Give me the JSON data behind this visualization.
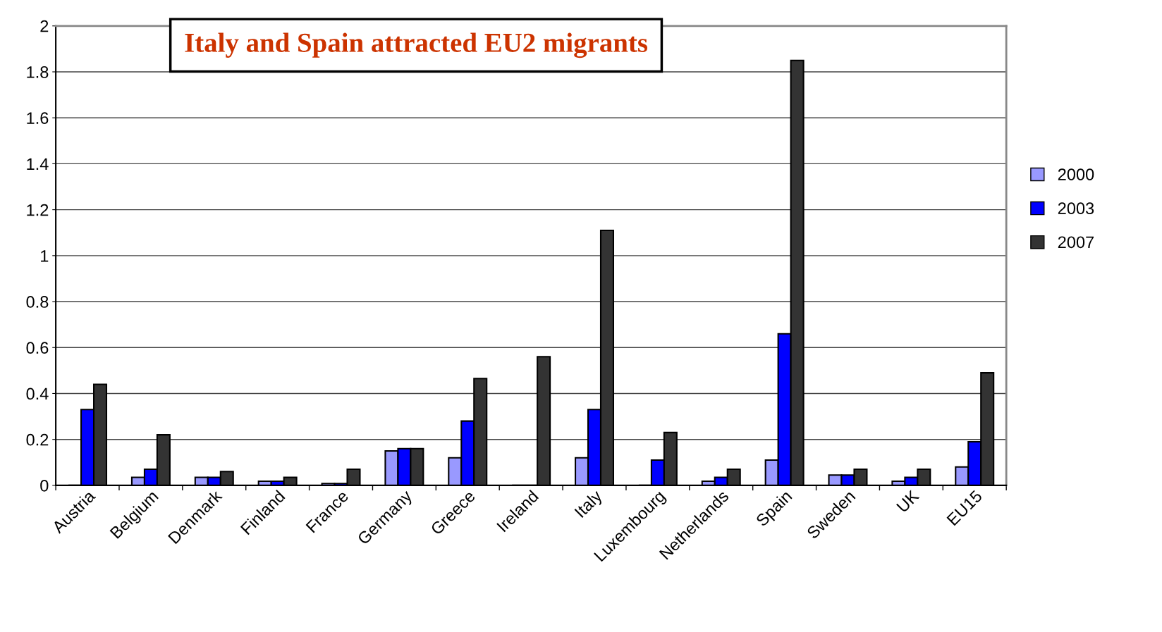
{
  "chart_data": {
    "type": "bar",
    "annotations": [
      "Italy and Spain attracted EU2 migrants"
    ],
    "categories": [
      "Austria",
      "Belgium",
      "Denmark",
      "Finland",
      "France",
      "Germany",
      "Greece",
      "Ireland",
      "Italy",
      "Luxembourg",
      "Netherlands",
      "Spain",
      "Sweden",
      "UK",
      "EU15"
    ],
    "series": [
      {
        "name": "2000",
        "color": "#9999ff",
        "values": [
          0,
          0.035,
          0.035,
          0.018,
          0.008,
          0.15,
          0.12,
          0,
          0.12,
          0,
          0.018,
          0.11,
          0.045,
          0.018,
          0.08
        ]
      },
      {
        "name": "2003",
        "color": "#0000ff",
        "values": [
          0.33,
          0.07,
          0.035,
          0.018,
          0.008,
          0.16,
          0.28,
          0,
          0.33,
          0.11,
          0.035,
          0.66,
          0.045,
          0.035,
          0.19
        ]
      },
      {
        "name": "2007",
        "color": "#333333",
        "values": [
          0.44,
          0.22,
          0.06,
          0.035,
          0.07,
          0.16,
          0.465,
          0.56,
          1.11,
          0.23,
          0.07,
          1.85,
          0.07,
          0.07,
          0.49
        ]
      }
    ],
    "ylim": [
      0,
      2
    ],
    "yticks": [
      0,
      0.2,
      0.4,
      0.6,
      0.8,
      1,
      1.2,
      1.4,
      1.6,
      1.8,
      2
    ],
    "grid": "y",
    "legend": "right"
  }
}
